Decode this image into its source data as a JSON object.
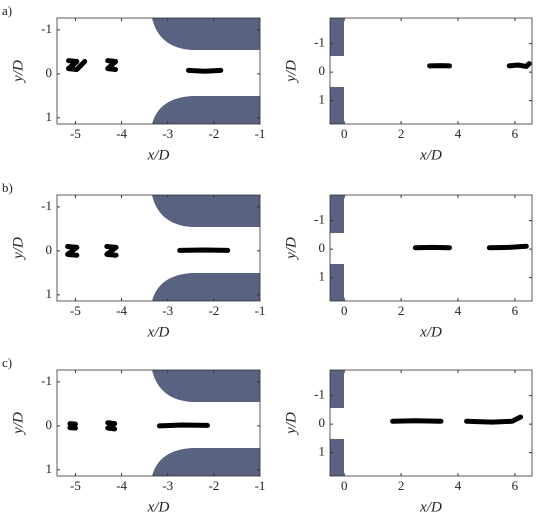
{
  "chart_data": [
    {
      "type": "line",
      "panel_label": "a)",
      "xlabel": "x/D",
      "ylabel": "y/D",
      "xlim": [
        -5.4,
        -1
      ],
      "ylim": [
        -1.27,
        1.14
      ],
      "y_reversed": true,
      "xticks": [
        -5,
        -4,
        -3,
        -2,
        -1
      ],
      "yticks": [
        -1,
        0,
        1
      ],
      "series": [
        {
          "color": "#000000",
          "x": [
            -5.15,
            -4.97,
            -5.15,
            -4.97,
            -4.8
          ],
          "values": [
            -0.3,
            -0.28,
            -0.12,
            -0.1,
            -0.28
          ]
        },
        {
          "color": "#000000",
          "x": [
            -4.3,
            -4.13,
            -4.3,
            -4.13
          ],
          "values": [
            -0.3,
            -0.28,
            -0.12,
            -0.1
          ]
        },
        {
          "color": "#000000",
          "x": [
            -2.55,
            -2.2,
            -1.85
          ],
          "values": [
            -0.08,
            -0.06,
            -0.08
          ]
        }
      ]
    },
    {
      "type": "line",
      "xlabel": "x/D",
      "ylabel": "y/D",
      "xlim": [
        -0.5,
        6.6
      ],
      "ylim": [
        -1.9,
        1.82
      ],
      "y_reversed": true,
      "xticks": [
        0,
        2,
        4,
        6
      ],
      "yticks": [
        -1,
        0,
        1
      ],
      "series": [
        {
          "color": "#000000",
          "x": [
            3.0,
            3.4,
            3.7
          ],
          "values": [
            -0.22,
            -0.23,
            -0.22
          ]
        },
        {
          "color": "#000000",
          "x": [
            5.8,
            6.1,
            6.4,
            6.5
          ],
          "values": [
            -0.22,
            -0.25,
            -0.2,
            -0.3
          ]
        }
      ]
    },
    {
      "type": "line",
      "panel_label": "b)",
      "xlabel": "x/D",
      "ylabel": "y/D",
      "xlim": [
        -5.4,
        -1
      ],
      "ylim": [
        -1.27,
        1.14
      ],
      "y_reversed": true,
      "xticks": [
        -5,
        -4,
        -3,
        -2,
        -1
      ],
      "yticks": [
        -1,
        0,
        1
      ],
      "series": [
        {
          "color": "#000000",
          "x": [
            -5.17,
            -4.97,
            -5.17,
            -4.97
          ],
          "values": [
            -0.1,
            -0.08,
            0.08,
            0.1
          ]
        },
        {
          "color": "#000000",
          "x": [
            -4.32,
            -4.12,
            -4.32,
            -4.12
          ],
          "values": [
            -0.1,
            -0.08,
            0.08,
            0.1
          ]
        },
        {
          "color": "#000000",
          "x": [
            -2.74,
            -2.2,
            -1.7
          ],
          "values": [
            -0.01,
            -0.02,
            -0.01
          ]
        }
      ]
    },
    {
      "type": "line",
      "xlabel": "x/D",
      "ylabel": "y/D",
      "xlim": [
        -0.5,
        6.6
      ],
      "ylim": [
        -1.9,
        1.82
      ],
      "y_reversed": true,
      "xticks": [
        0,
        2,
        4,
        6
      ],
      "yticks": [
        -1,
        0,
        1
      ],
      "series": [
        {
          "color": "#000000",
          "x": [
            2.5,
            3.1,
            3.7
          ],
          "values": [
            -0.05,
            -0.06,
            -0.05
          ]
        },
        {
          "color": "#000000",
          "x": [
            5.1,
            5.8,
            6.4
          ],
          "values": [
            -0.05,
            -0.06,
            -0.1
          ]
        }
      ]
    },
    {
      "type": "line",
      "panel_label": "c)",
      "xlabel": "x/D",
      "ylabel": "y/D",
      "xlim": [
        -5.4,
        -1
      ],
      "ylim": [
        -1.27,
        1.14
      ],
      "y_reversed": true,
      "xticks": [
        -5,
        -4,
        -3,
        -2,
        -1
      ],
      "yticks": [
        -1,
        0,
        1
      ],
      "series": [
        {
          "color": "#000000",
          "x": [
            -5.12,
            -5.0,
            -5.12,
            -5.0
          ],
          "values": [
            -0.05,
            -0.04,
            0.04,
            0.05
          ]
        },
        {
          "color": "#000000",
          "x": [
            -4.3,
            -4.15,
            -4.3,
            -4.15
          ],
          "values": [
            -0.07,
            -0.05,
            0.05,
            0.07
          ]
        },
        {
          "color": "#000000",
          "x": [
            -3.18,
            -2.7,
            -2.14
          ],
          "values": [
            0.0,
            -0.02,
            -0.01
          ]
        }
      ]
    },
    {
      "type": "line",
      "xlabel": "x/D",
      "ylabel": "y/D",
      "xlim": [
        -0.5,
        6.6
      ],
      "ylim": [
        -1.9,
        1.82
      ],
      "y_reversed": true,
      "xticks": [
        0,
        2,
        4,
        6
      ],
      "yticks": [
        -1,
        0,
        1
      ],
      "series": [
        {
          "color": "#000000",
          "x": [
            1.7,
            2.5,
            3.4
          ],
          "values": [
            -0.1,
            -0.12,
            -0.1
          ]
        },
        {
          "color": "#000000",
          "x": [
            4.3,
            5.2,
            5.9,
            6.2
          ],
          "values": [
            -0.1,
            -0.07,
            -0.1,
            -0.25
          ]
        }
      ]
    }
  ]
}
